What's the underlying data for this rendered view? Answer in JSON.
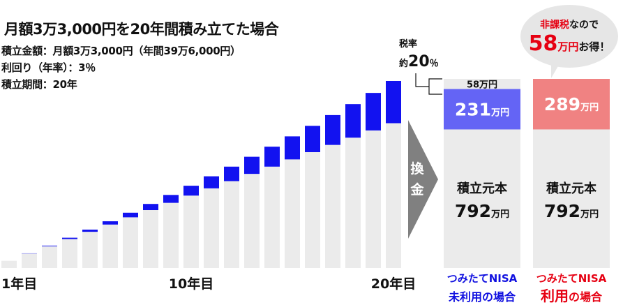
{
  "header": {
    "title": "月額3万3,000円を20年間積み立てた場合",
    "conditions": [
      "積立金額：月額3万3,000円（年間39万6,000円）",
      "利回り（年率）：3％",
      "積立期間：20年"
    ]
  },
  "tax_note": {
    "line1": "税率",
    "line2_prefix": "約",
    "line2_value": "20",
    "line2_unit": "％"
  },
  "convert_label": "換金",
  "bubble": {
    "line1_red": "非課税",
    "line1_rest": "なので",
    "amount": "58",
    "unit": "万円",
    "suffix": "お得！"
  },
  "colors": {
    "principal": "#ebebeb",
    "gain": "#1212f0",
    "no_nisa_gain": "#6464f5",
    "nisa_gain": "#f08282",
    "arrow": "#808080",
    "bubble_bg": "#e6e6e6",
    "red": "#e60012",
    "blue": "#1010e0"
  },
  "chart_data": [
    {
      "type": "bar",
      "stacked": true,
      "categories": [
        "1",
        "2",
        "3",
        "4",
        "5",
        "6",
        "7",
        "8",
        "9",
        "10",
        "11",
        "12",
        "13",
        "14",
        "15",
        "16",
        "17",
        "18",
        "19",
        "20"
      ],
      "tick_labels": [
        {
          "index": 0,
          "text": "1年目"
        },
        {
          "index": 9,
          "text": "10年目"
        },
        {
          "index": 19,
          "text": "20年目"
        }
      ],
      "series": [
        {
          "values": [
            39.6,
            79.2,
            118.8,
            158.4,
            198,
            237.6,
            277.2,
            316.8,
            356.4,
            396,
            435.6,
            475.2,
            514.8,
            554.4,
            594,
            633.6,
            673.2,
            712.8,
            752.4,
            792
          ]
        },
        {
          "values": [
            0,
            1.2,
            3.6,
            7.2,
            12,
            18,
            25.2,
            33.6,
            43.2,
            54,
            66,
            79.2,
            93.6,
            109.2,
            126,
            144,
            163.2,
            183.6,
            205.2,
            231
          ]
        }
      ],
      "ylim": [
        0,
        1023
      ]
    },
    {
      "type": "bar",
      "stacked": true,
      "categories": [
        "つみたてNISA 未利用の場合",
        "つみたてNISA 利用の場合"
      ],
      "series": [
        {
          "values": [
            792,
            792
          ]
        },
        {
          "values": [
            231,
            289
          ]
        },
        {
          "values": [
            58,
            0
          ]
        }
      ],
      "ylim": [
        0,
        1081
      ],
      "principal_label": "積立元本",
      "principal_value": "792",
      "unit": "万円",
      "gain_labels": [
        "231",
        "289"
      ],
      "tax_label": "58万円",
      "col_labels": [
        {
          "line1": "つみたてNISA",
          "line2_main": "未利用",
          "line2_rest": "の場合"
        },
        {
          "line1": "つみたてNISA",
          "line2_main": "利用",
          "line2_rest": "の場合"
        }
      ]
    }
  ]
}
